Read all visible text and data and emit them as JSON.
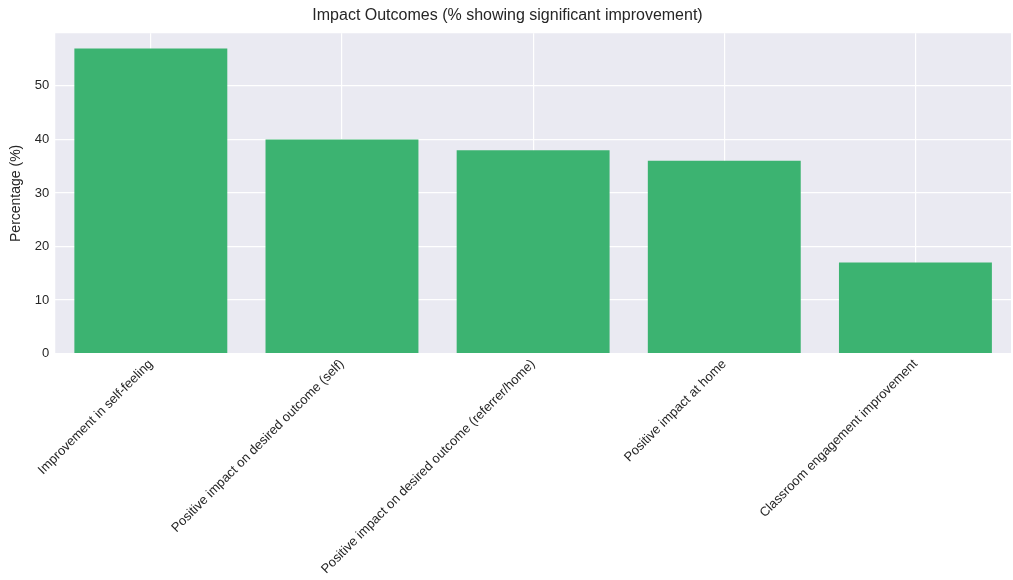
{
  "chart_data": {
    "type": "bar",
    "title": "Impact Outcomes (% showing significant improvement)",
    "ylabel": "Percentage (%)",
    "categories": [
      "Improvement in self-feeling",
      "Positive impact on desired outcome (self)",
      "Positive impact on desired outcome (referrer/home)",
      "Positive impact at home",
      "Classroom engagement improvement"
    ],
    "values": [
      57,
      40,
      38,
      36,
      17
    ],
    "color": "#3cb371",
    "ylim": [
      0,
      59.85
    ],
    "yticks": [
      0,
      10,
      20,
      30,
      40,
      50
    ],
    "grid": true
  }
}
